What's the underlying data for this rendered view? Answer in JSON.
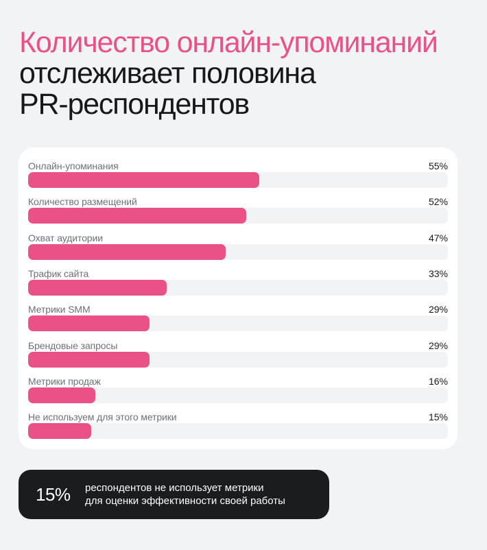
{
  "title": {
    "accent_line": "Количество онлайн-упоминаний",
    "line2": "отслеживает половина",
    "line3": "PR-респондентов"
  },
  "colors": {
    "accent": "#ea5287",
    "text_dark": "#17181b",
    "label_gray": "#6c707a",
    "track": "#f2f3f5",
    "background": "#f2f3f5",
    "note_bg": "#1b1c1f"
  },
  "chart_data": {
    "type": "bar",
    "orientation": "horizontal",
    "title": "Количество онлайн-упоминаний отслеживает половина PR-респондентов",
    "xlabel": "",
    "ylabel": "",
    "xlim": [
      0,
      100
    ],
    "unit": "%",
    "grid": false,
    "legend": null,
    "categories": [
      "Онлайн-упоминания",
      "Количество размещений",
      "Охват аудитории",
      "Трафик сайта",
      "Метрики SMM",
      "Брендовые запросы",
      "Метрики продаж",
      "Не используем для этого метрики"
    ],
    "values": [
      55,
      52,
      47,
      33,
      29,
      29,
      16,
      15
    ],
    "value_labels": [
      "55%",
      "52%",
      "47%",
      "33%",
      "29%",
      "29%",
      "16%",
      "15%"
    ]
  },
  "note": {
    "value": "15%",
    "line1": "респондентов не использует метрики",
    "line2": "для оценки эффективности своей работы"
  }
}
